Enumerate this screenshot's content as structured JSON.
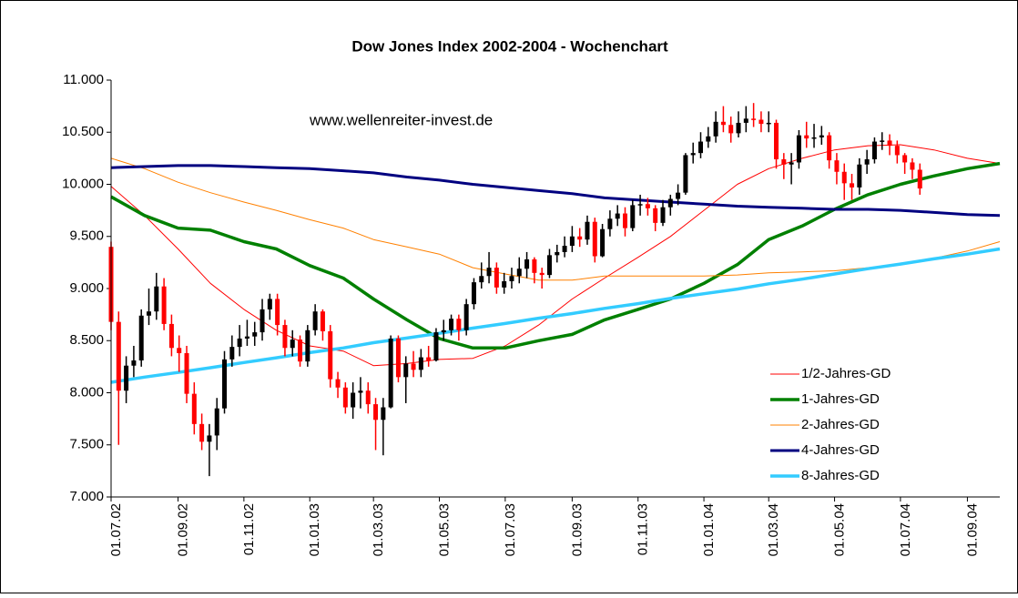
{
  "chart_data": {
    "type": "candlestick",
    "title": "Dow Jones Index 2002-2004  - Wochenchart",
    "annotation": "www.wellenreiter-invest.de",
    "legend": "lower right",
    "grid": false,
    "xlim": [
      "01.07.02",
      "01.10.04"
    ],
    "xticks": [
      "01.07.02",
      "01.09.02",
      "01.11.02",
      "01.01.03",
      "01.03.03",
      "01.05.03",
      "01.07.03",
      "01.09.03",
      "01.11.03",
      "01.01.04",
      "01.03.04",
      "01.05.04",
      "01.07.04",
      "01.09.04"
    ],
    "ylim": [
      7000,
      11000
    ],
    "yticks": [
      {
        "value": 7000,
        "label": "7.000"
      },
      {
        "value": 7500,
        "label": "7.500"
      },
      {
        "value": 8000,
        "label": "8.000"
      },
      {
        "value": 8500,
        "label": "8.500"
      },
      {
        "value": 9000,
        "label": "9.000"
      },
      {
        "value": 9500,
        "label": "9.500"
      },
      {
        "value": 10000,
        "label": "10.000"
      },
      {
        "value": 10500,
        "label": "10.500"
      },
      {
        "value": 11000,
        "label": "11.000"
      }
    ],
    "candles": {
      "up_color": "#000000",
      "down_color": "#ff0000",
      "x": [
        "01.07.02",
        "08.07.02",
        "15.07.02",
        "22.07.02",
        "29.07.02",
        "05.08.02",
        "12.08.02",
        "19.08.02",
        "26.08.02",
        "02.09.02",
        "09.09.02",
        "16.09.02",
        "23.09.02",
        "30.09.02",
        "07.10.02",
        "14.10.02",
        "21.10.02",
        "28.10.02",
        "04.11.02",
        "11.11.02",
        "18.11.02",
        "25.11.02",
        "02.12.02",
        "09.12.02",
        "16.12.02",
        "23.12.02",
        "30.12.02",
        "06.01.03",
        "13.01.03",
        "20.01.03",
        "27.01.03",
        "03.02.03",
        "10.02.03",
        "17.02.03",
        "24.02.03",
        "03.03.03",
        "10.03.03",
        "17.03.03",
        "24.03.03",
        "31.03.03",
        "07.04.03",
        "14.04.03",
        "21.04.03",
        "28.04.03",
        "05.05.03",
        "12.05.03",
        "19.05.03",
        "26.05.03",
        "02.06.03",
        "09.06.03",
        "16.06.03",
        "23.06.03",
        "30.06.03",
        "07.07.03",
        "14.07.03",
        "21.07.03",
        "28.07.03",
        "04.08.03",
        "11.08.03",
        "18.08.03",
        "25.08.03",
        "01.09.03",
        "08.09.03",
        "15.09.03",
        "22.09.03",
        "29.09.03",
        "06.10.03",
        "13.10.03",
        "20.10.03",
        "27.10.03",
        "03.11.03",
        "10.11.03",
        "17.11.03",
        "24.11.03",
        "01.12.03",
        "08.12.03",
        "15.12.03",
        "22.12.03",
        "29.12.03",
        "05.01.04",
        "12.01.04",
        "19.01.04",
        "26.01.04",
        "02.02.04",
        "09.02.04",
        "16.02.04",
        "23.02.04",
        "01.03.04",
        "08.03.04",
        "15.03.04",
        "22.03.04",
        "29.03.04",
        "05.04.04",
        "12.04.04",
        "19.04.04",
        "26.04.04",
        "03.05.04",
        "10.05.04",
        "17.05.04",
        "24.05.04",
        "31.05.04",
        "07.06.04",
        "14.06.04",
        "21.06.04",
        "28.06.04",
        "05.07.04",
        "12.07.04",
        "19.07.04"
      ],
      "open": [
        9400,
        8680,
        8020,
        8260,
        8310,
        8740,
        8780,
        9020,
        8660,
        8430,
        8380,
        7990,
        7700,
        7530,
        7590,
        7850,
        8320,
        8440,
        8520,
        8540,
        8580,
        8800,
        8900,
        8650,
        8430,
        8510,
        8300,
        8600,
        8780,
        8590,
        8130,
        8050,
        7860,
        8000,
        8020,
        7890,
        7740,
        7860,
        8520,
        8150,
        8280,
        8220,
        8340,
        8310,
        8580,
        8600,
        8710,
        8600,
        8850,
        9060,
        9120,
        9200,
        9010,
        9070,
        9120,
        9190,
        9280,
        9150,
        9130,
        9320,
        9350,
        9410,
        9500,
        9470,
        9640,
        9310,
        9570,
        9670,
        9720,
        9580,
        9800,
        9810,
        9770,
        9630,
        9780,
        9860,
        9920,
        10280,
        10300,
        10410,
        10460,
        10600,
        10570,
        10490,
        10590,
        10630,
        10620,
        10580,
        10590,
        10240,
        10190,
        10210,
        10470,
        10440,
        10450,
        10470,
        10230,
        10120,
        10010,
        9970,
        10190,
        10240,
        10410,
        10420,
        10370,
        10280,
        10210,
        10140
      ],
      "high": [
        9450,
        8780,
        8350,
        8450,
        8800,
        9000,
        9150,
        9100,
        8750,
        8550,
        8450,
        8100,
        7800,
        7700,
        7950,
        8400,
        8550,
        8650,
        8700,
        8680,
        8900,
        8950,
        8950,
        8700,
        8600,
        8550,
        8650,
        8850,
        8800,
        8650,
        8200,
        8100,
        8100,
        8150,
        8100,
        7950,
        7950,
        8550,
        8550,
        8350,
        8400,
        8420,
        8450,
        8620,
        8700,
        8750,
        8750,
        8900,
        9100,
        9250,
        9350,
        9250,
        9150,
        9200,
        9300,
        9350,
        9300,
        9200,
        9380,
        9420,
        9500,
        9600,
        9580,
        9700,
        9680,
        9620,
        9750,
        9800,
        9780,
        9850,
        9900,
        9870,
        9800,
        9850,
        9900,
        10000,
        10300,
        10400,
        10500,
        10550,
        10700,
        10750,
        10650,
        10700,
        10750,
        10780,
        10700,
        10700,
        10620,
        10300,
        10300,
        10520,
        10600,
        10580,
        10560,
        10500,
        10300,
        10200,
        10100,
        10250,
        10330,
        10450,
        10500,
        10480,
        10420,
        10300,
        10250,
        10200
      ],
      "low": [
        8600,
        7500,
        7900,
        8150,
        8250,
        8650,
        8700,
        8600,
        8350,
        8200,
        7900,
        7600,
        7450,
        7200,
        7450,
        7800,
        8250,
        8350,
        8450,
        8450,
        8500,
        8700,
        8550,
        8350,
        8350,
        8250,
        8250,
        8550,
        8500,
        8050,
        7950,
        7800,
        7750,
        7850,
        7800,
        7450,
        7400,
        7850,
        8100,
        7900,
        8150,
        8150,
        8250,
        8300,
        8500,
        8550,
        8500,
        8550,
        8800,
        9000,
        9050,
        8950,
        8950,
        9000,
        9050,
        9100,
        9050,
        9000,
        9100,
        9250,
        9300,
        9350,
        9400,
        9420,
        9250,
        9300,
        9500,
        9600,
        9500,
        9550,
        9700,
        9700,
        9550,
        9600,
        9700,
        9800,
        9900,
        10200,
        10250,
        10350,
        10400,
        10500,
        10400,
        10450,
        10500,
        10550,
        10500,
        10500,
        10150,
        10050,
        10000,
        10150,
        10350,
        10350,
        10380,
        10150,
        10000,
        9850,
        9850,
        9900,
        10100,
        10200,
        10330,
        10280,
        10200,
        10100,
        10050,
        9900
      ],
      "close": [
        8680,
        8020,
        8260,
        8310,
        8740,
        8780,
        9020,
        8660,
        8430,
        8380,
        7990,
        7700,
        7530,
        7590,
        7850,
        8320,
        8440,
        8520,
        8540,
        8580,
        8800,
        8900,
        8650,
        8430,
        8510,
        8300,
        8600,
        8780,
        8590,
        8130,
        8050,
        7860,
        8000,
        8020,
        7890,
        7740,
        7860,
        8520,
        8150,
        8280,
        8220,
        8340,
        8310,
        8580,
        8600,
        8710,
        8600,
        8850,
        9060,
        9120,
        9200,
        9010,
        9070,
        9120,
        9190,
        9280,
        9150,
        9130,
        9320,
        9350,
        9410,
        9500,
        9470,
        9640,
        9310,
        9570,
        9670,
        9720,
        9580,
        9800,
        9810,
        9770,
        9630,
        9780,
        9860,
        9920,
        10280,
        10300,
        10410,
        10460,
        10600,
        10570,
        10490,
        10590,
        10630,
        10620,
        10580,
        10590,
        10240,
        10190,
        10210,
        10470,
        10440,
        10450,
        10470,
        10230,
        10120,
        10010,
        9970,
        10190,
        10240,
        10410,
        10420,
        10370,
        10280,
        10210,
        10140,
        9960
      ]
    },
    "x": [
      "01.07.02",
      "01.08.02",
      "01.09.02",
      "01.10.02",
      "01.11.02",
      "01.12.02",
      "01.01.03",
      "01.02.03",
      "01.03.03",
      "01.04.03",
      "01.05.03",
      "01.06.03",
      "01.07.03",
      "01.08.03",
      "01.09.03",
      "01.10.03",
      "01.11.03",
      "01.12.03",
      "01.01.04",
      "01.02.04",
      "01.03.04",
      "01.04.04",
      "01.05.04",
      "01.06.04",
      "01.07.04",
      "01.08.04",
      "01.09.04",
      "01.10.04"
    ],
    "series": [
      {
        "name": "1/2-Jahres-GD",
        "color": "#ff0000",
        "width": 1,
        "values": [
          9980,
          9700,
          9380,
          9050,
          8800,
          8600,
          8450,
          8400,
          8260,
          8280,
          8320,
          8330,
          8450,
          8650,
          8900,
          9100,
          9300,
          9500,
          9750,
          10000,
          10150,
          10250,
          10330,
          10370,
          10380,
          10330,
          10250,
          10200
        ]
      },
      {
        "name": "1-Jahres-GD",
        "color": "#008000",
        "width": 3.5,
        "values": [
          9880,
          9700,
          9580,
          9560,
          9450,
          9380,
          9220,
          9100,
          8900,
          8700,
          8520,
          8430,
          8430,
          8500,
          8560,
          8700,
          8800,
          8900,
          9050,
          9230,
          9470,
          9600,
          9760,
          9900,
          10000,
          10080,
          10150,
          10200
        ]
      },
      {
        "name": "2-Jahres-GD",
        "color": "#ff8000",
        "width": 1,
        "values": [
          10250,
          10150,
          10020,
          9920,
          9830,
          9750,
          9660,
          9580,
          9470,
          9400,
          9330,
          9200,
          9140,
          9080,
          9080,
          9120,
          9120,
          9120,
          9120,
          9130,
          9150,
          9160,
          9170,
          9200,
          9230,
          9290,
          9360,
          9450
        ]
      },
      {
        "name": "4-Jahres-GD",
        "color": "#000080",
        "width": 3,
        "values": [
          10160,
          10170,
          10180,
          10180,
          10170,
          10160,
          10150,
          10130,
          10110,
          10070,
          10040,
          10000,
          9970,
          9940,
          9910,
          9870,
          9850,
          9830,
          9810,
          9790,
          9780,
          9770,
          9760,
          9760,
          9750,
          9730,
          9710,
          9700
        ]
      },
      {
        "name": "8-Jahres-GD",
        "color": "#33ccff",
        "width": 3.5,
        "values": [
          8100,
          8150,
          8195,
          8240,
          8290,
          8335,
          8385,
          8430,
          8480,
          8525,
          8570,
          8620,
          8665,
          8715,
          8760,
          8810,
          8855,
          8905,
          8950,
          8995,
          9045,
          9090,
          9140,
          9190,
          9235,
          9285,
          9330,
          9380
        ]
      }
    ]
  }
}
